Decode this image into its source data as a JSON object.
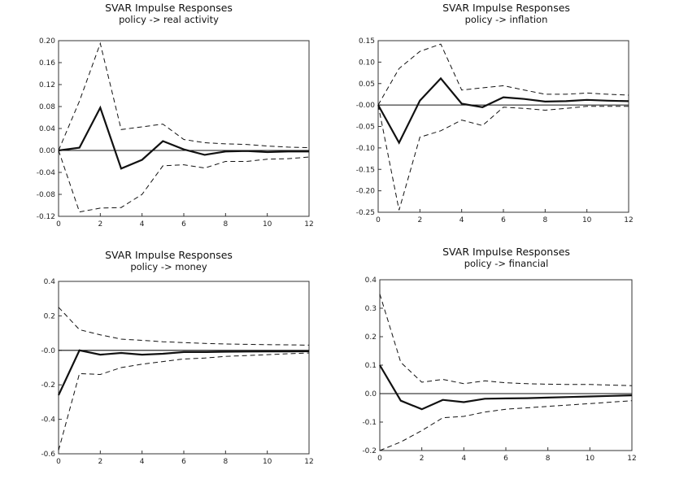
{
  "chart_data": [
    {
      "type": "line",
      "title": "SVAR Impulse Responses",
      "subtitle": "policy  ->  real activity",
      "x": [
        0,
        1,
        2,
        3,
        4,
        5,
        6,
        7,
        8,
        9,
        10,
        11,
        12
      ],
      "xticks": [
        "0",
        "2",
        "4",
        "6",
        "8",
        "10",
        "12"
      ],
      "ylim": [
        -0.12,
        0.2
      ],
      "yticks": [
        "0.20",
        "0.16",
        "0.12",
        "0.08",
        "0.04",
        "0.00",
        "-0.04",
        "-0.08",
        "-0.12"
      ],
      "series": [
        {
          "name": "response",
          "style": "solid",
          "values": [
            0.0,
            0.005,
            0.078,
            -0.033,
            -0.017,
            0.017,
            0.002,
            -0.008,
            -0.002,
            -0.001,
            -0.003,
            -0.002,
            -0.002
          ]
        },
        {
          "name": "upper band",
          "style": "dashed",
          "values": [
            0.0,
            0.09,
            0.195,
            0.038,
            0.043,
            0.048,
            0.02,
            0.014,
            0.012,
            0.011,
            0.008,
            0.006,
            0.005
          ]
        },
        {
          "name": "lower band",
          "style": "dashed",
          "values": [
            0.0,
            -0.112,
            -0.105,
            -0.104,
            -0.08,
            -0.028,
            -0.026,
            -0.032,
            -0.02,
            -0.02,
            -0.016,
            -0.015,
            -0.012
          ]
        }
      ]
    },
    {
      "type": "line",
      "title": "SVAR Impulse Responses",
      "subtitle": "policy  ->  inflation",
      "x": [
        0,
        1,
        2,
        3,
        4,
        5,
        6,
        7,
        8,
        9,
        10,
        11,
        12
      ],
      "xticks": [
        "0",
        "2",
        "4",
        "6",
        "8",
        "10",
        "12"
      ],
      "ylim": [
        -0.25,
        0.15
      ],
      "yticks": [
        "0.15",
        "0.10",
        "0.05",
        "-0.00",
        "-0.05",
        "-0.10",
        "-0.15",
        "-0.20",
        "-0.25"
      ],
      "series": [
        {
          "name": "response",
          "style": "solid",
          "values": [
            0.0,
            -0.088,
            0.01,
            0.062,
            0.003,
            -0.005,
            0.018,
            0.014,
            0.008,
            0.009,
            0.012,
            0.01,
            0.009
          ]
        },
        {
          "name": "upper band",
          "style": "dashed",
          "values": [
            0.0,
            0.085,
            0.125,
            0.142,
            0.035,
            0.04,
            0.045,
            0.035,
            0.025,
            0.025,
            0.028,
            0.025,
            0.023
          ]
        },
        {
          "name": "lower band",
          "style": "dashed",
          "values": [
            0.0,
            -0.245,
            -0.075,
            -0.06,
            -0.035,
            -0.048,
            -0.005,
            -0.008,
            -0.012,
            -0.008,
            -0.003,
            -0.003,
            -0.003
          ]
        }
      ]
    },
    {
      "type": "line",
      "title": "SVAR Impulse Responses",
      "subtitle": "policy  ->  money",
      "x": [
        0,
        1,
        2,
        3,
        4,
        5,
        6,
        7,
        8,
        9,
        10,
        11,
        12
      ],
      "xticks": [
        "0",
        "2",
        "4",
        "6",
        "8",
        "10",
        "12"
      ],
      "ylim": [
        -0.6,
        0.4
      ],
      "yticks": [
        "0.4",
        "0.2",
        "-0.0",
        "-0.2",
        "-0.4",
        "-0.6"
      ],
      "series": [
        {
          "name": "response",
          "style": "solid",
          "values": [
            -0.26,
            0.0,
            -0.025,
            -0.015,
            -0.025,
            -0.02,
            -0.01,
            -0.01,
            -0.008,
            -0.007,
            -0.006,
            -0.006,
            -0.005
          ]
        },
        {
          "name": "upper band",
          "style": "dashed",
          "values": [
            0.25,
            0.12,
            0.09,
            0.065,
            0.058,
            0.05,
            0.045,
            0.04,
            0.037,
            0.035,
            0.033,
            0.032,
            0.03
          ]
        },
        {
          "name": "lower band",
          "style": "dashed",
          "values": [
            -0.58,
            -0.135,
            -0.14,
            -0.1,
            -0.08,
            -0.065,
            -0.05,
            -0.045,
            -0.035,
            -0.03,
            -0.025,
            -0.02,
            -0.015
          ]
        }
      ]
    },
    {
      "type": "line",
      "title": "SVAR Impulse Responses",
      "subtitle": "policy  ->  financial",
      "x": [
        0,
        1,
        2,
        3,
        4,
        5,
        6,
        7,
        8,
        9,
        10,
        11,
        12
      ],
      "xticks": [
        "0",
        "2",
        "4",
        "6",
        "8",
        "10",
        "12"
      ],
      "ylim": [
        -0.2,
        0.4
      ],
      "yticks": [
        "0.4",
        "0.3",
        "0.2",
        "0.1",
        "0.0",
        "-0.1",
        "-0.2"
      ],
      "series": [
        {
          "name": "response",
          "style": "solid",
          "values": [
            0.1,
            -0.025,
            -0.055,
            -0.022,
            -0.03,
            -0.018,
            -0.017,
            -0.016,
            -0.014,
            -0.012,
            -0.01,
            -0.008,
            -0.006
          ]
        },
        {
          "name": "upper band",
          "style": "dashed",
          "values": [
            0.35,
            0.11,
            0.04,
            0.05,
            0.035,
            0.045,
            0.038,
            0.035,
            0.033,
            0.032,
            0.032,
            0.03,
            0.028
          ]
        },
        {
          "name": "lower band",
          "style": "dashed",
          "values": [
            -0.2,
            -0.17,
            -0.13,
            -0.085,
            -0.08,
            -0.065,
            -0.055,
            -0.05,
            -0.045,
            -0.04,
            -0.035,
            -0.03,
            -0.025
          ]
        }
      ]
    }
  ]
}
